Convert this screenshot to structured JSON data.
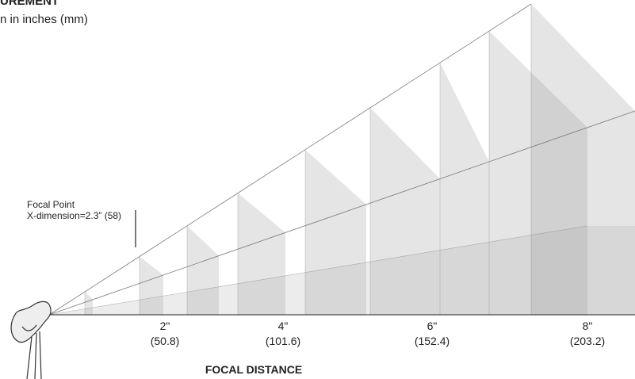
{
  "header": {
    "title": "UREMENT",
    "subtitle": "n in inches (mm)"
  },
  "annotation": {
    "lines": [
      "Focal Point",
      "X-dimension=2.3” (58)"
    ]
  },
  "axis": {
    "ticks": [
      {
        "inches": "2\"",
        "mm": "(50.8)"
      },
      {
        "inches": "4\"",
        "mm": "(101.6)"
      },
      {
        "inches": "6\"",
        "mm": "(152.4)"
      },
      {
        "inches": "8\"",
        "mm": "(203.2)"
      }
    ],
    "label": "FOCAL DISTANCE"
  }
}
